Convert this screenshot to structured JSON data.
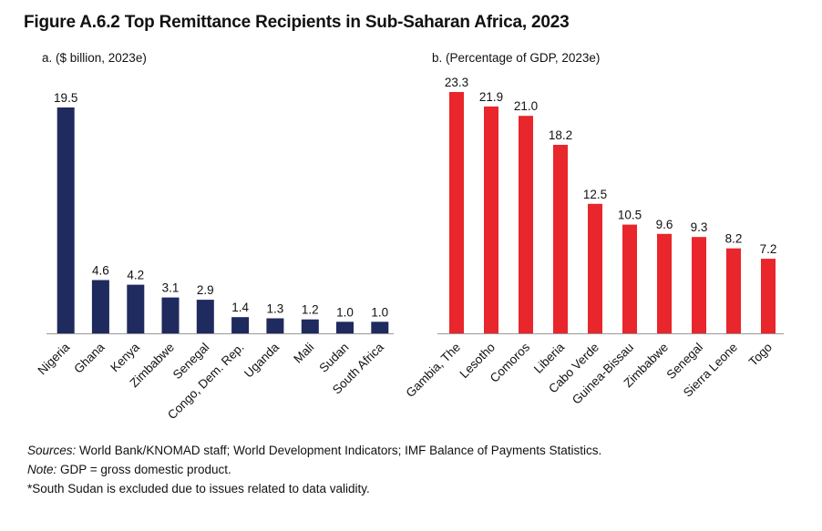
{
  "title": "Figure A.6.2 Top Remittance Recipients in Sub-Saharan Africa, 2023",
  "chart_data": [
    {
      "type": "bar",
      "subtitle": "a. ($ billion, 2023e)",
      "categories": [
        "Nigeria",
        "Ghana",
        "Kenya",
        "Zimbabwe",
        "Senegal",
        "Congo, Dem. Rep.",
        "Uganda",
        "Mali",
        "Sudan",
        "South Africa"
      ],
      "values": [
        19.5,
        4.6,
        4.2,
        3.1,
        2.9,
        1.4,
        1.3,
        1.2,
        1.0,
        1.0
      ],
      "value_labels": [
        "19.5",
        "4.6",
        "4.2",
        "3.1",
        "2.9",
        "1.4",
        "1.3",
        "1.2",
        "1.0",
        "1.0"
      ],
      "ylim": [
        0,
        19.5
      ],
      "color": "#1f2a5e",
      "grid": false
    },
    {
      "type": "bar",
      "subtitle": "b. (Percentage of GDP, 2023e)",
      "categories": [
        "Gambia, The",
        "Lesotho",
        "Comoros",
        "Liberia",
        "Cabo Verde",
        "Guinea-Bissau",
        "Zimbabwe",
        "Senegal",
        "Sierra Leone",
        "Togo"
      ],
      "values": [
        23.3,
        21.9,
        21.0,
        18.2,
        12.5,
        10.5,
        9.6,
        9.3,
        8.2,
        7.2
      ],
      "value_labels": [
        "23.3",
        "21.9",
        "21.0",
        "18.2",
        "12.5",
        "10.5",
        "9.6",
        "9.3",
        "8.2",
        "7.2"
      ],
      "ylim": [
        0,
        23.3
      ],
      "color": "#e8262b",
      "grid": false
    }
  ],
  "notes": {
    "sources_label": "Sources:",
    "sources_text": " World Bank/KNOMAD staff; World Development Indicators; IMF Balance of Payments Statistics.",
    "note_label": "Note:",
    "note_text": " GDP = gross domestic product.",
    "footnote": "*South Sudan is excluded due to issues related to data validity."
  }
}
